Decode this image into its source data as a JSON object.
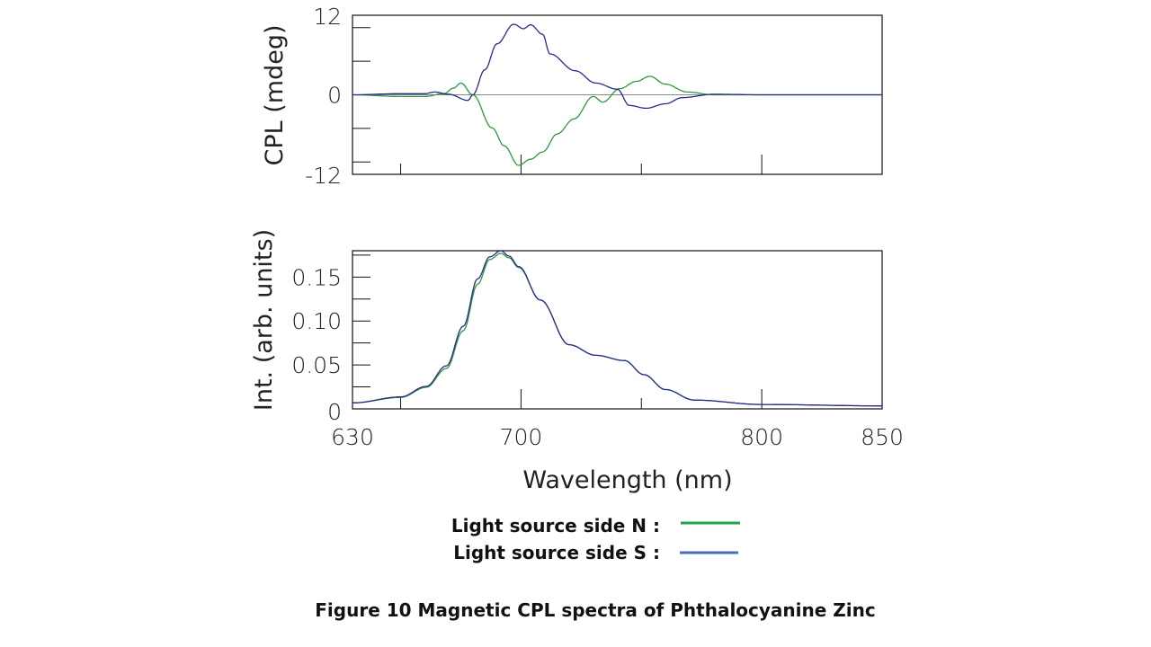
{
  "chart_data": [
    {
      "type": "line",
      "ylabel": "CPL (mdeg)",
      "xlabel": "",
      "xlim": [
        630,
        850
      ],
      "ylim": [
        -14.2,
        14.2
      ],
      "yticks": [
        12,
        0,
        -12
      ],
      "yticks_labels": [
        "12",
        "0",
        "-12"
      ],
      "yminor": [
        6,
        -6
      ],
      "xticks_major": [
        700,
        800
      ],
      "xticks_minor": [
        650,
        750
      ],
      "zero_line": true,
      "grid": false,
      "series": [
        {
          "name": "Light source side N",
          "color": "#2e9a3a",
          "x": [
            630,
            650,
            660,
            668,
            672,
            675,
            680,
            688,
            693,
            699,
            704,
            709,
            715,
            722,
            730,
            734,
            741,
            748,
            753.5,
            760,
            769,
            780,
            800,
            850
          ],
          "y": [
            0,
            -0.3,
            -0.3,
            0.2,
            1.2,
            2.1,
            0,
            -5.9,
            -9.1,
            -12.6,
            -11.5,
            -10.2,
            -7,
            -4.3,
            -0.3,
            -1.3,
            1.1,
            2.4,
            3.3,
            1.9,
            0.5,
            0,
            0,
            0
          ]
        },
        {
          "name": "Light source side S",
          "color": "#2a2a8c",
          "x": [
            630,
            650,
            660,
            664,
            670,
            678,
            680,
            685,
            690,
            697,
            701,
            704,
            709,
            712,
            722.5,
            731,
            740,
            745,
            752,
            760,
            767,
            780,
            800,
            850
          ],
          "y": [
            0,
            0.2,
            0.2,
            0.5,
            0.1,
            -1,
            0,
            4.5,
            9.1,
            12.6,
            11.8,
            12.5,
            10.8,
            7.3,
            4.3,
            2.1,
            1,
            -1.9,
            -2.4,
            -1.6,
            -0.5,
            0.1,
            0,
            0
          ]
        }
      ]
    },
    {
      "type": "line",
      "ylabel": "Int. (arb. units)",
      "xlabel": "Wavelength (nm)",
      "xlim": [
        630,
        850
      ],
      "ylim": [
        0,
        0.18
      ],
      "yticks": [
        0,
        0.05,
        0.1,
        0.15
      ],
      "yticks_labels": [
        "0",
        "0.05",
        "0.10",
        "0.15"
      ],
      "yminor": [
        0.025,
        0.075,
        0.125,
        0.175
      ],
      "xticks": [
        630,
        700,
        800,
        850
      ],
      "xticks_labels": [
        "630",
        "700",
        "800",
        "850"
      ],
      "xticks_major": [
        700,
        800
      ],
      "xticks_minor": [
        650,
        750
      ],
      "grid": false,
      "series": [
        {
          "name": "Light source side N",
          "color": "#2e9a3a",
          "x": [
            630,
            650,
            660.6,
            669,
            676,
            682,
            687,
            691.6,
            695,
            699,
            708,
            720,
            731,
            743,
            751,
            760,
            772,
            800,
            850
          ],
          "y": [
            0.0068,
            0.013,
            0.0245,
            0.046,
            0.089,
            0.142,
            0.17,
            0.177,
            0.172,
            0.161,
            0.124,
            0.073,
            0.061,
            0.055,
            0.039,
            0.022,
            0.01,
            0.005,
            0.0034
          ]
        },
        {
          "name": "Light source side S",
          "color": "#2a2a8c",
          "x": [
            630,
            650,
            660.6,
            669,
            676,
            682,
            687,
            691.6,
            695,
            699,
            708,
            720,
            731,
            743,
            751,
            760,
            772,
            800,
            850
          ],
          "y": [
            0.0068,
            0.0136,
            0.0256,
            0.049,
            0.094,
            0.148,
            0.173,
            0.18,
            0.174,
            0.162,
            0.124,
            0.073,
            0.061,
            0.055,
            0.039,
            0.022,
            0.01,
            0.005,
            0.0034
          ]
        }
      ]
    }
  ],
  "legend": {
    "placement": "bottom-center",
    "items": [
      {
        "label": "Light source side N :",
        "color": "#1ea64a"
      },
      {
        "label": "Light source side S :",
        "color": "#4a6db8"
      }
    ]
  },
  "caption": "Figure 10 Magnetic CPL spectra of Phthalocyanine Zinc"
}
